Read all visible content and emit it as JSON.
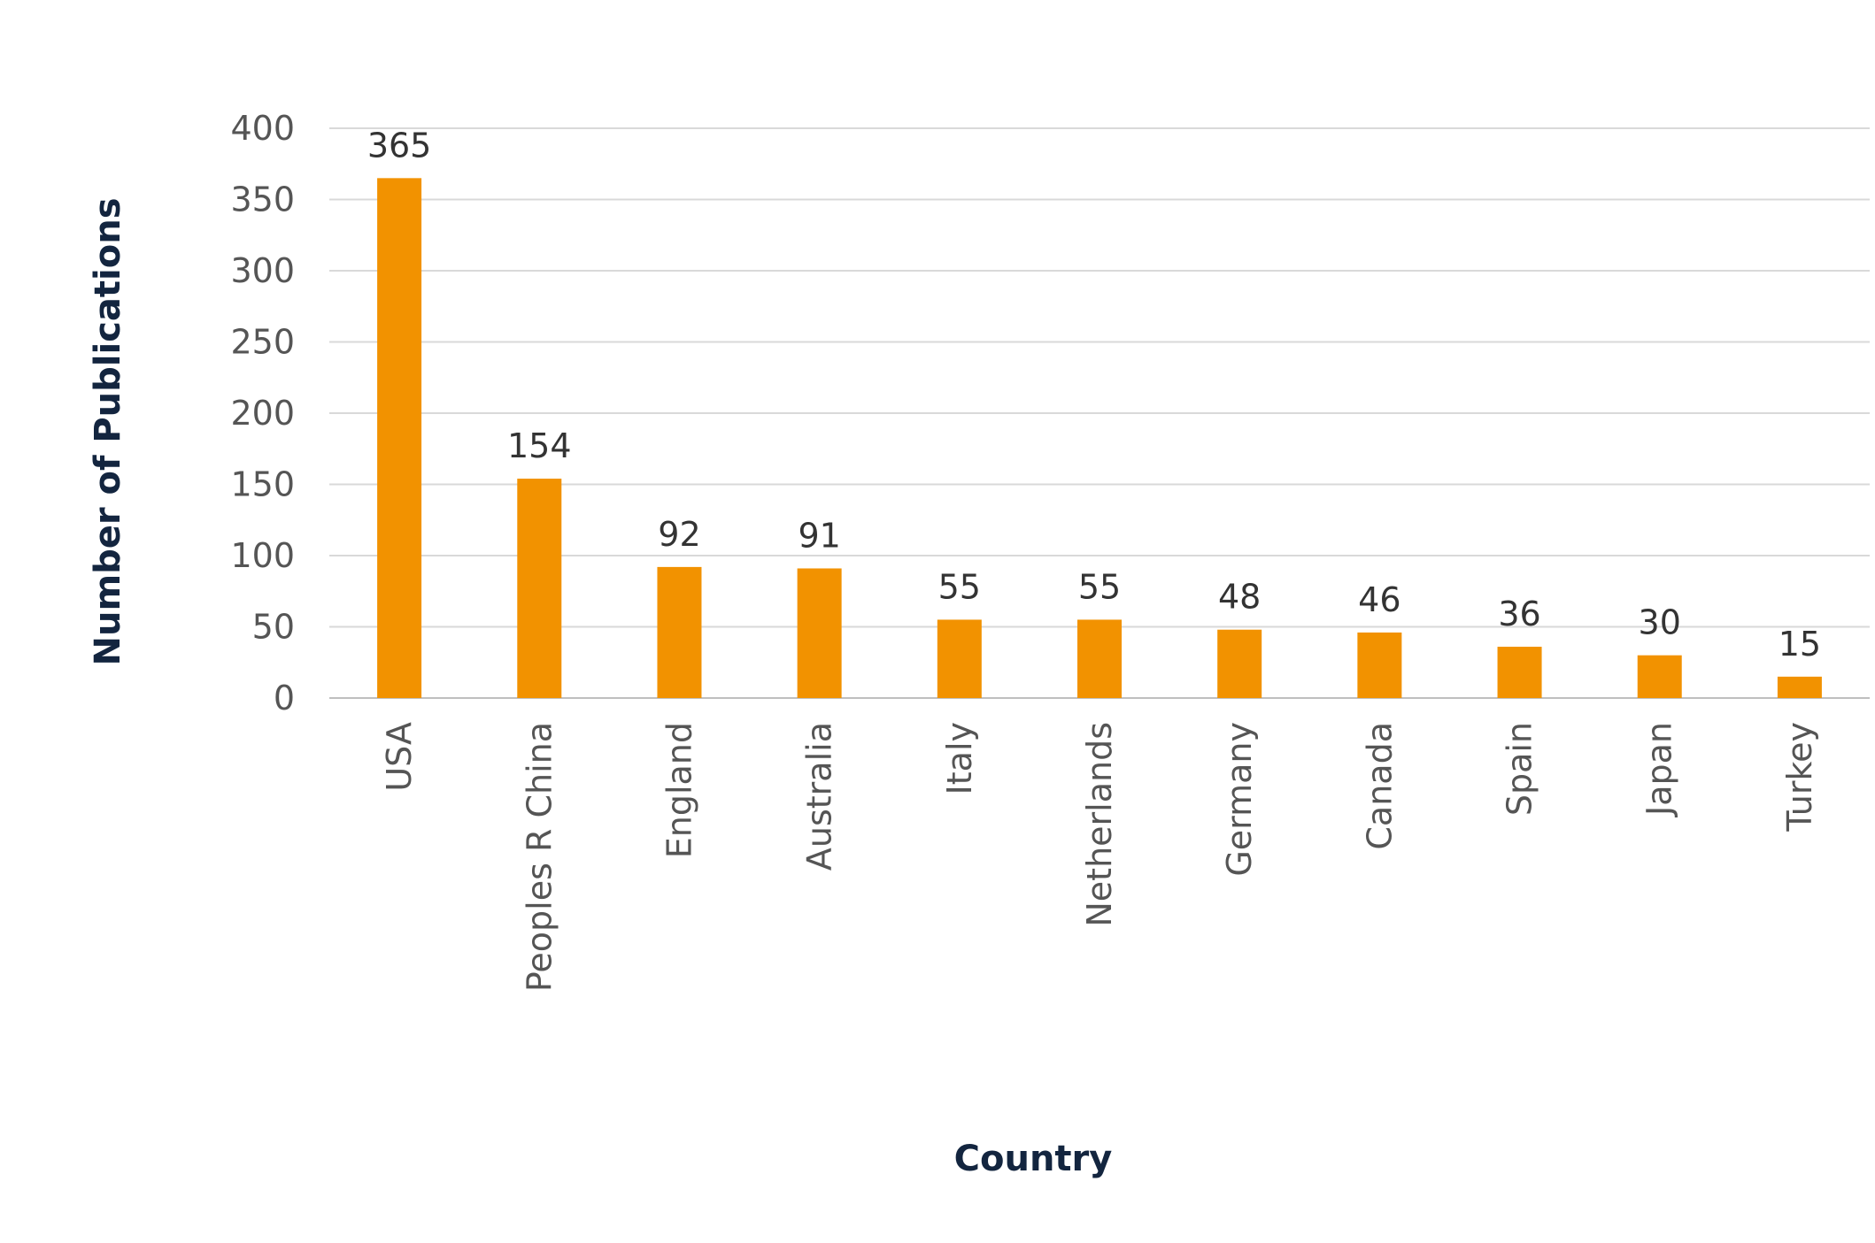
{
  "chart_data": {
    "type": "bar",
    "title": "",
    "xlabel": "Country",
    "ylabel": "Number of Publications",
    "ylim": [
      0,
      400
    ],
    "yticks": [
      0,
      50,
      100,
      150,
      200,
      250,
      300,
      350,
      400
    ],
    "grid": true,
    "legend": "none",
    "bar_color": "#F29200",
    "categories": [
      "USA",
      "Peoples R China",
      "England",
      "Australia",
      "Italy",
      "Netherlands",
      "Germany",
      "Canada",
      "Spain",
      "Japan",
      "Turkey"
    ],
    "values": [
      365,
      154,
      92,
      91,
      55,
      55,
      48,
      46,
      36,
      30,
      15
    ],
    "data_labels": [
      "365",
      "154",
      "92",
      "91",
      "55",
      "55",
      "48",
      "46",
      "36",
      "30",
      "15"
    ]
  }
}
